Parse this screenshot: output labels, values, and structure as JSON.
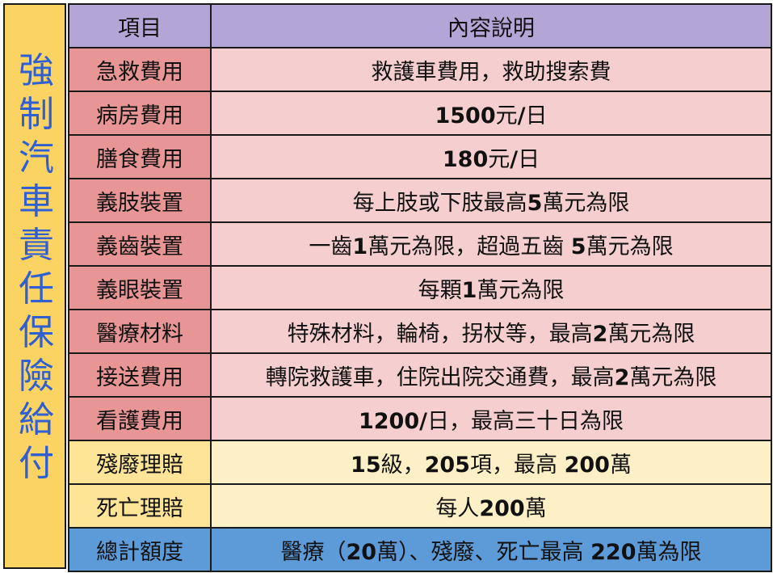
{
  "side_title": [
    "強",
    "制",
    "汽",
    "車",
    "責",
    "任",
    "保",
    "險",
    "給",
    "付"
  ],
  "header": {
    "col1": "項目",
    "col2": "內容說明"
  },
  "rows": [
    {
      "item": "急救費用",
      "desc": "救護車費用，救助搜索費",
      "tone": "r"
    },
    {
      "item": "病房費用",
      "desc": "1500元/日",
      "tone": "r"
    },
    {
      "item": "膳食費用",
      "desc": "180元/日",
      "tone": "r"
    },
    {
      "item": "義肢裝置",
      "desc": "每上肢或下肢最高5萬元為限",
      "tone": "r"
    },
    {
      "item": "義齒裝置",
      "desc": "一齒1萬元為限，超過五齒 5萬元為限",
      "tone": "r"
    },
    {
      "item": "義眼裝置",
      "desc": "每顆1萬元為限",
      "tone": "r"
    },
    {
      "item": "醫療材料",
      "desc": "特殊材料，輪椅，拐杖等，最高2萬元為限",
      "tone": "r"
    },
    {
      "item": "接送費用",
      "desc": "轉院救護車，住院出院交通費，最高2萬元為限",
      "tone": "r"
    },
    {
      "item": "看護費用",
      "desc": "1200/日，最高三十日為限",
      "tone": "r"
    },
    {
      "item": "殘廢理賠",
      "desc": "15級，205項，最高 200萬",
      "tone": "y"
    },
    {
      "item": "死亡理賠",
      "desc": "每人200萬",
      "tone": "y"
    },
    {
      "item": "總計額度",
      "desc": "醫療（20萬）、殘廢、死亡最高 220萬為限",
      "tone": "t"
    }
  ],
  "colors": {
    "header": "#b3a6d6",
    "medical_item": "#e89595",
    "medical_desc": "#f5cfcf",
    "claim_item": "#fde497",
    "claim_desc": "#fdf0c6",
    "total": "#5d9bd8",
    "side_panel": "#fbd362",
    "side_text": "#2f5fd0"
  }
}
